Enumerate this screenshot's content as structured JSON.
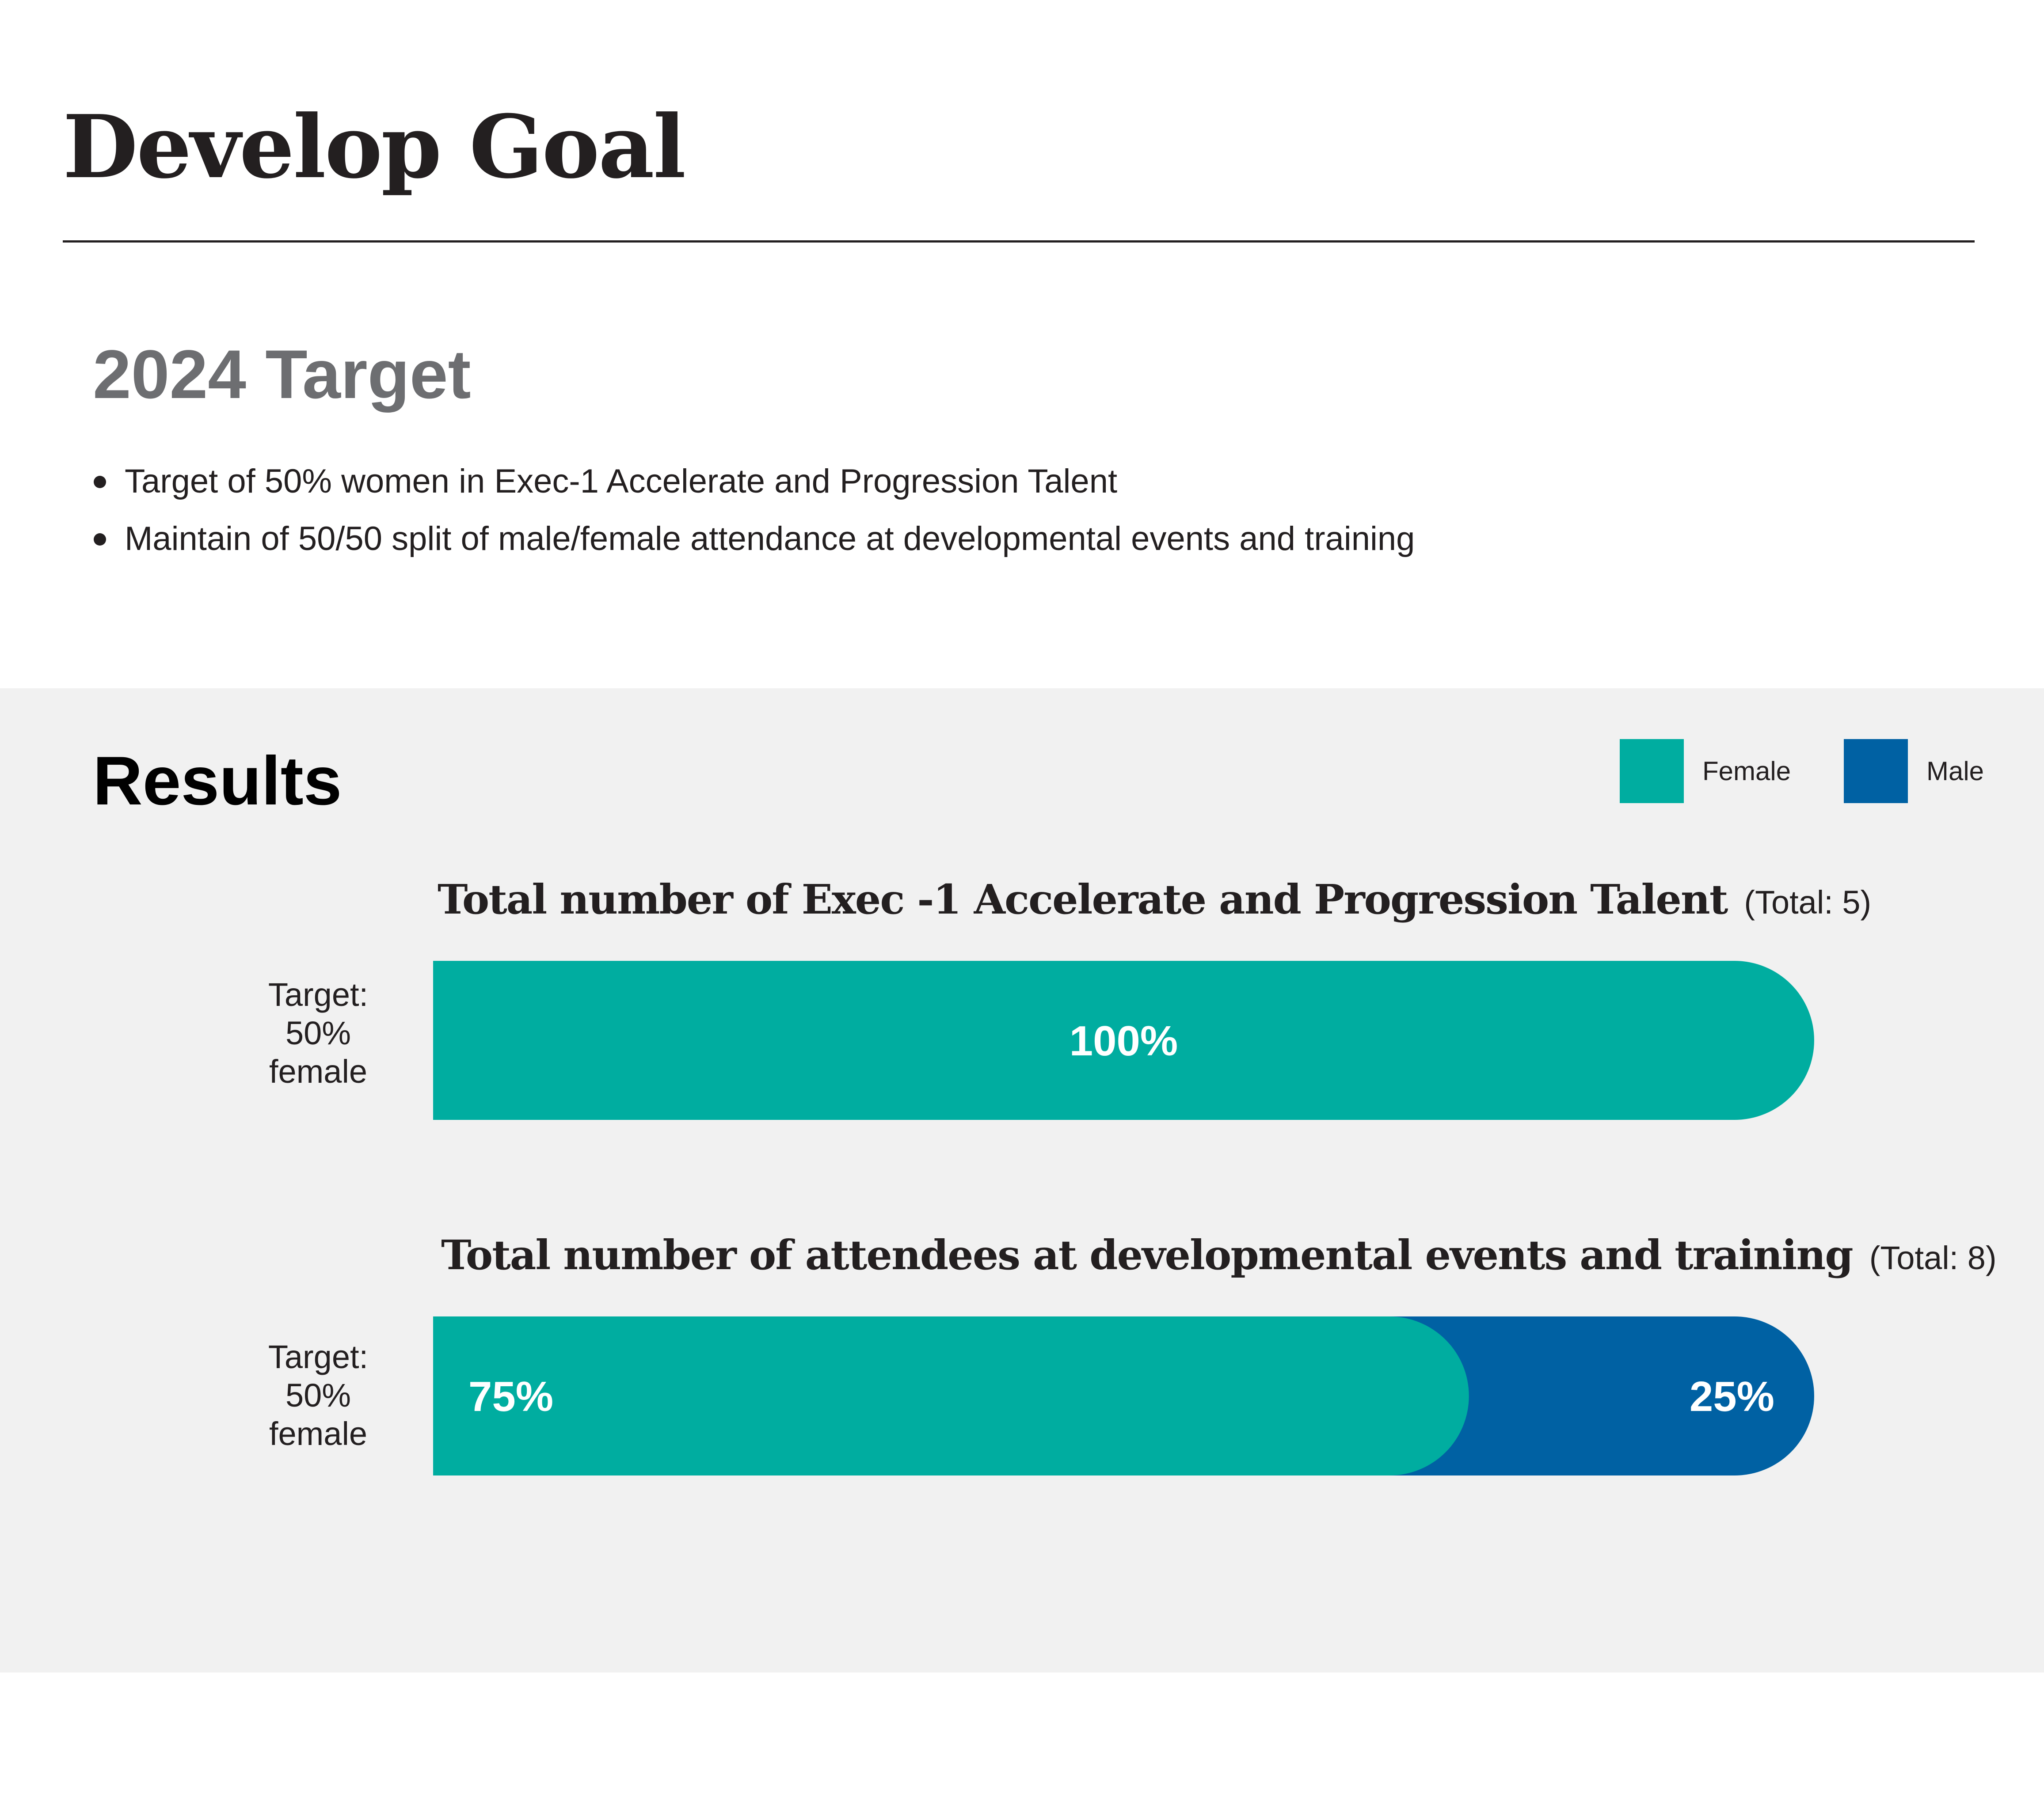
{
  "page": {
    "title": "Develop Goal"
  },
  "target_section": {
    "heading": "2024 Target",
    "bullets": [
      "Target of 50% women in Exec-1 Accelerate and Progression Talent",
      "Maintain of 50/50 split of male/female attendance at developmental events and training"
    ]
  },
  "results": {
    "heading": "Results"
  },
  "legend": [
    {
      "label": "Female",
      "color": "#00ada0"
    },
    {
      "label": "Male",
      "color": "#0061a3"
    }
  ],
  "chart_data": [
    {
      "type": "bar",
      "orientation": "horizontal",
      "stacked": true,
      "title": "Total number of Exec -1 Accelerate and Progression Talent",
      "total_label": "(Total: 5)",
      "total": 5,
      "target_label": [
        "Target:",
        "50%",
        "female"
      ],
      "series": [
        {
          "name": "Female",
          "value": 100,
          "label": "100%",
          "color": "#00ada0"
        },
        {
          "name": "Male",
          "value": 0,
          "label": "",
          "color": "#0061a3"
        }
      ]
    },
    {
      "type": "bar",
      "orientation": "horizontal",
      "stacked": true,
      "title": "Total number of attendees at developmental events and training",
      "total_label": "(Total: 8)",
      "total": 8,
      "target_label": [
        "Target:",
        "50%",
        "female"
      ],
      "series": [
        {
          "name": "Female",
          "value": 75,
          "label": "75%",
          "color": "#00ada0"
        },
        {
          "name": "Male",
          "value": 25,
          "label": "25%",
          "color": "#0061a3"
        }
      ]
    }
  ]
}
